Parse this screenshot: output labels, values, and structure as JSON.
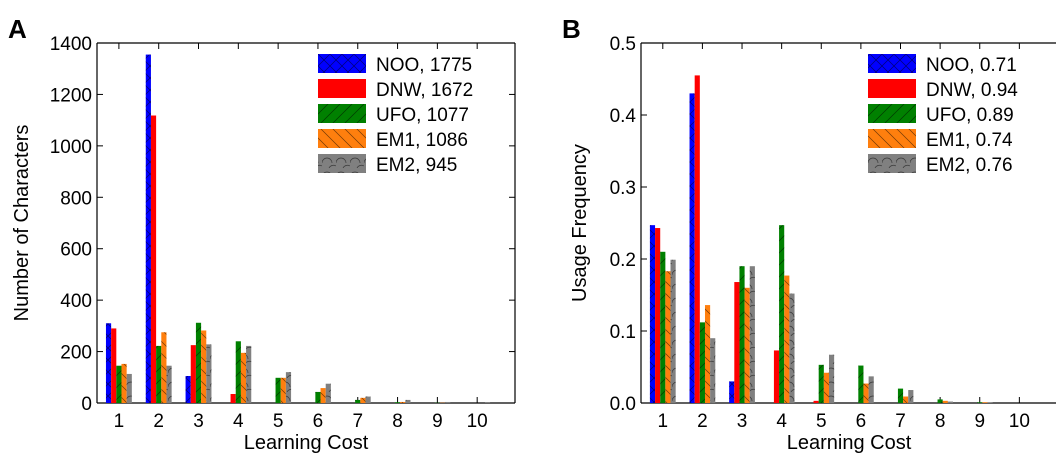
{
  "chart_data": [
    {
      "panel_label": "A",
      "type": "bar",
      "xlabel": "Learning Cost",
      "ylabel": "Number of Characters",
      "ylim": [
        0,
        1400
      ],
      "yticks": [
        0,
        200,
        400,
        600,
        800,
        1000,
        1200,
        1400
      ],
      "categories": [
        "1",
        "2",
        "3",
        "4",
        "5",
        "6",
        "7",
        "8",
        "9",
        "10"
      ],
      "legend_position": "top-right",
      "series": [
        {
          "name": "NOO, 1775",
          "color": "#0000ff",
          "pattern": "cross",
          "values": [
            310,
            1355,
            105,
            0,
            0,
            0,
            0,
            0,
            0,
            0
          ]
        },
        {
          "name": "DNW, 1672",
          "color": "#ff0000",
          "pattern": "none",
          "values": [
            290,
            1118,
            225,
            35,
            0,
            0,
            0,
            0,
            0,
            0
          ]
        },
        {
          "name": "UFO, 1077",
          "color": "#008000",
          "pattern": "diagonal",
          "values": [
            145,
            222,
            312,
            240,
            98,
            43,
            12,
            3,
            1,
            0
          ]
        },
        {
          "name": "EM1, 1086",
          "color": "#ff7f0e",
          "pattern": "backslash",
          "values": [
            152,
            275,
            282,
            195,
            98,
            58,
            20,
            4,
            1,
            0
          ]
        },
        {
          "name": "EM2, 945",
          "color": "#808080",
          "pattern": "circles",
          "values": [
            113,
            145,
            228,
            222,
            120,
            75,
            25,
            12,
            4,
            1
          ]
        }
      ]
    },
    {
      "panel_label": "B",
      "type": "bar",
      "xlabel": "Learning Cost",
      "ylabel": "Usage Frequency",
      "ylim": [
        0,
        0.5
      ],
      "yticks": [
        0.0,
        0.1,
        0.2,
        0.3,
        0.4,
        0.5
      ],
      "ytick_labels": [
        "0.0",
        "0.1",
        "0.2",
        "0.3",
        "0.4",
        "0.5"
      ],
      "categories": [
        "1",
        "2",
        "3",
        "4",
        "5",
        "6",
        "7",
        "8",
        "9",
        "10"
      ],
      "legend_position": "top-right",
      "series": [
        {
          "name": "NOO, 0.71",
          "color": "#0000ff",
          "pattern": "cross",
          "values": [
            0.247,
            0.43,
            0.03,
            0,
            0,
            0,
            0,
            0,
            0,
            0
          ]
        },
        {
          "name": "DNW, 0.94",
          "color": "#ff0000",
          "pattern": "none",
          "values": [
            0.243,
            0.455,
            0.168,
            0.073,
            0.003,
            0,
            0,
            0,
            0,
            0
          ]
        },
        {
          "name": "UFO, 0.89",
          "color": "#008000",
          "pattern": "diagonal",
          "values": [
            0.21,
            0.112,
            0.19,
            0.247,
            0.053,
            0.052,
            0.02,
            0.005,
            0.001,
            0
          ]
        },
        {
          "name": "EM1, 0.74",
          "color": "#ff7f0e",
          "pattern": "backslash",
          "values": [
            0.183,
            0.136,
            0.16,
            0.177,
            0.042,
            0.027,
            0.009,
            0.003,
            0.001,
            0
          ]
        },
        {
          "name": "EM2, 0.76",
          "color": "#808080",
          "pattern": "circles",
          "values": [
            0.199,
            0.09,
            0.19,
            0.152,
            0.067,
            0.037,
            0.018,
            0.002,
            0.001,
            0
          ]
        }
      ]
    }
  ]
}
